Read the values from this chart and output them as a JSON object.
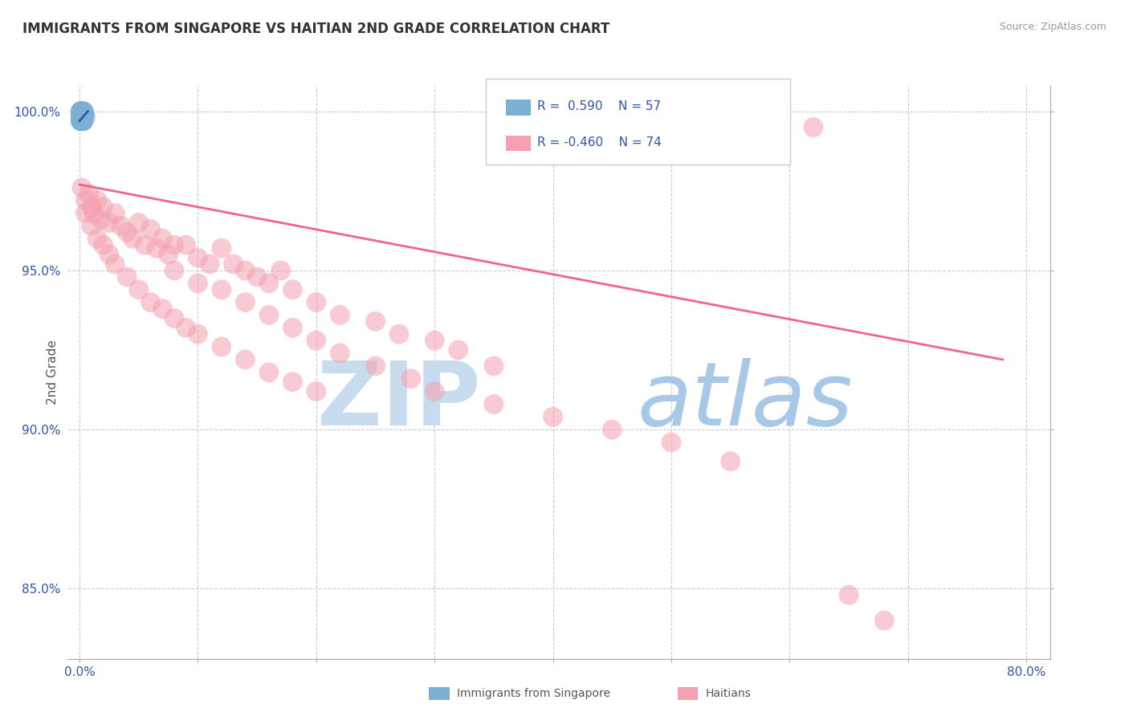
{
  "title": "IMMIGRANTS FROM SINGAPORE VS HAITIAN 2ND GRADE CORRELATION CHART",
  "source_text": "Source: ZipAtlas.com",
  "ylabel": "2nd Grade",
  "xlim": [
    -0.01,
    0.82
  ],
  "ylim": [
    0.828,
    1.008
  ],
  "xticks": [
    0.0,
    0.1,
    0.2,
    0.3,
    0.4,
    0.5,
    0.6,
    0.7,
    0.8
  ],
  "xticklabels": [
    "0.0%",
    "",
    "",
    "",
    "",
    "",
    "",
    "",
    "80.0%"
  ],
  "yticks": [
    0.85,
    0.9,
    0.95,
    1.0
  ],
  "yticklabels": [
    "85.0%",
    "90.0%",
    "95.0%",
    "100.0%"
  ],
  "blue_R": 0.59,
  "blue_N": 57,
  "pink_R": -0.46,
  "pink_N": 74,
  "blue_color": "#7BAFD4",
  "pink_color": "#F4A0B0",
  "blue_edge_color": "#5588BB",
  "pink_edge_color": "#E07090",
  "blue_line_color": "#3355AA",
  "pink_line_color": "#EE6688",
  "watermark_zip_color": "#C8DCF0",
  "watermark_atlas_color": "#A8C8E8",
  "grid_color": "#CCCCCC",
  "title_color": "#333333",
  "tick_color": "#3355AA",
  "legend_color": "#3355AA",
  "blue_scatter_x": [
    0.001,
    0.002,
    0.001,
    0.003,
    0.001,
    0.002,
    0.004,
    0.001,
    0.002,
    0.001,
    0.003,
    0.002,
    0.001,
    0.004,
    0.002,
    0.001,
    0.003,
    0.002,
    0.001,
    0.005,
    0.002,
    0.003,
    0.001,
    0.002,
    0.004,
    0.001,
    0.003,
    0.002,
    0.001,
    0.003,
    0.002,
    0.001,
    0.004,
    0.001,
    0.002,
    0.003,
    0.001,
    0.002,
    0.001,
    0.003,
    0.002,
    0.001,
    0.004,
    0.001,
    0.002,
    0.001,
    0.003,
    0.002,
    0.001,
    0.002,
    0.001,
    0.003,
    0.001,
    0.002,
    0.001,
    0.002,
    0.001
  ],
  "blue_scatter_y": [
    0.999,
    0.999,
    1.0,
    0.998,
    0.998,
    0.997,
    0.999,
    1.0,
    0.998,
    0.999,
    0.997,
    0.999,
    0.998,
    0.999,
    1.0,
    0.997,
    0.998,
    0.999,
    1.0,
    0.998,
    0.999,
    0.997,
    0.998,
    1.0,
    0.999,
    0.999,
    0.998,
    0.997,
    0.999,
    0.999,
    0.998,
    1.0,
    0.999,
    0.998,
    0.999,
    1.0,
    0.997,
    0.999,
    0.998,
    0.997,
    0.999,
    0.998,
    1.0,
    0.999,
    0.998,
    0.997,
    0.999,
    0.998,
    1.0,
    0.999,
    0.998,
    0.997,
    0.999,
    1.0,
    0.998,
    0.999,
    0.997
  ],
  "pink_scatter_x": [
    0.002,
    0.005,
    0.008,
    0.01,
    0.012,
    0.015,
    0.018,
    0.02,
    0.025,
    0.03,
    0.035,
    0.04,
    0.045,
    0.05,
    0.055,
    0.06,
    0.065,
    0.07,
    0.075,
    0.08,
    0.09,
    0.1,
    0.11,
    0.12,
    0.13,
    0.14,
    0.15,
    0.16,
    0.17,
    0.18,
    0.2,
    0.22,
    0.25,
    0.27,
    0.3,
    0.32,
    0.35,
    0.005,
    0.01,
    0.015,
    0.02,
    0.025,
    0.03,
    0.04,
    0.05,
    0.06,
    0.07,
    0.08,
    0.09,
    0.1,
    0.12,
    0.14,
    0.16,
    0.18,
    0.2,
    0.08,
    0.1,
    0.12,
    0.14,
    0.16,
    0.18,
    0.2,
    0.22,
    0.25,
    0.28,
    0.3,
    0.35,
    0.4,
    0.45,
    0.5,
    0.55,
    0.62,
    0.65,
    0.68
  ],
  "pink_scatter_y": [
    0.976,
    0.972,
    0.974,
    0.97,
    0.968,
    0.972,
    0.966,
    0.97,
    0.965,
    0.968,
    0.964,
    0.962,
    0.96,
    0.965,
    0.958,
    0.963,
    0.957,
    0.96,
    0.955,
    0.958,
    0.958,
    0.954,
    0.952,
    0.957,
    0.952,
    0.95,
    0.948,
    0.946,
    0.95,
    0.944,
    0.94,
    0.936,
    0.934,
    0.93,
    0.928,
    0.925,
    0.92,
    0.968,
    0.964,
    0.96,
    0.958,
    0.955,
    0.952,
    0.948,
    0.944,
    0.94,
    0.938,
    0.935,
    0.932,
    0.93,
    0.926,
    0.922,
    0.918,
    0.915,
    0.912,
    0.95,
    0.946,
    0.944,
    0.94,
    0.936,
    0.932,
    0.928,
    0.924,
    0.92,
    0.916,
    0.912,
    0.908,
    0.904,
    0.9,
    0.896,
    0.89,
    0.995,
    0.848,
    0.84
  ],
  "pink_trendline_x": [
    0.0,
    0.78
  ],
  "pink_trendline_y": [
    0.977,
    0.922
  ],
  "blue_trendline_x": [
    0.0,
    0.007
  ],
  "blue_trendline_y": [
    0.997,
    1.0
  ]
}
